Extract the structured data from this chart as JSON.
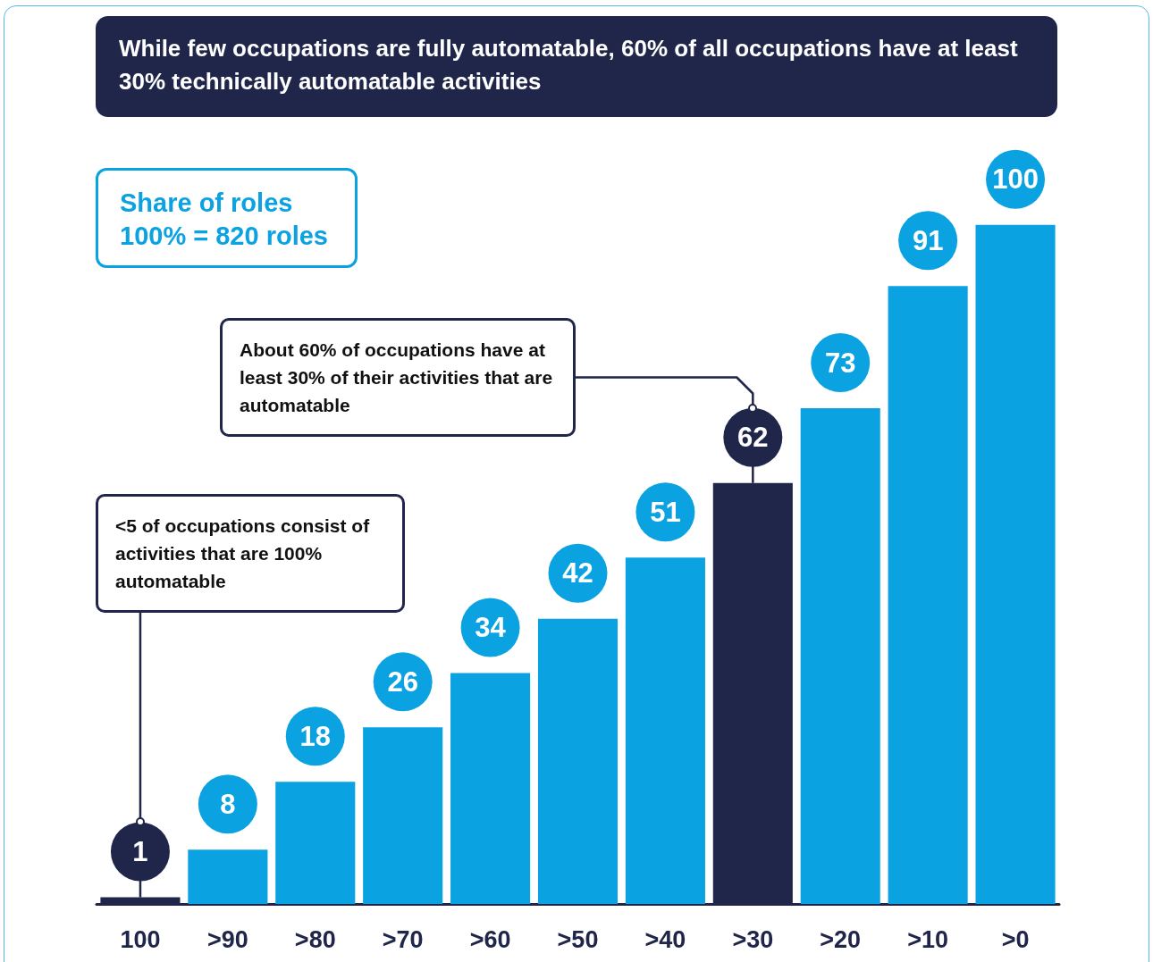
{
  "chart_data": {
    "type": "bar",
    "title": "While few occupations are fully automatable, 60% of all occupations have at least 30% technically automatable activities",
    "subtitle": "Share of roles",
    "categories": [
      "100",
      ">90",
      ">80",
      ">70",
      ">60",
      ">50",
      ">40",
      ">30",
      ">20",
      ">10",
      ">0"
    ],
    "values": [
      1,
      8,
      18,
      26,
      34,
      42,
      51,
      62,
      73,
      91,
      100
    ],
    "colors": [
      "#20264a",
      "#0ba2e2",
      "#0ba2e2",
      "#0ba2e2",
      "#0ba2e2",
      "#0ba2e2",
      "#0ba2e2",
      "#20264a",
      "#0ba2e2",
      "#0ba2e2",
      "#0ba2e2"
    ],
    "data_labels": true,
    "annotations": [
      "100% = 820 roles",
      {
        "text": "<5 of occupations consist of activities that are 100% automatable",
        "x": "100",
        "y": 1
      },
      {
        "text": "About 60% of occupations have at least 30% of their activities that are automatable",
        "x": ">30",
        "y": 62
      }
    ]
  }
}
